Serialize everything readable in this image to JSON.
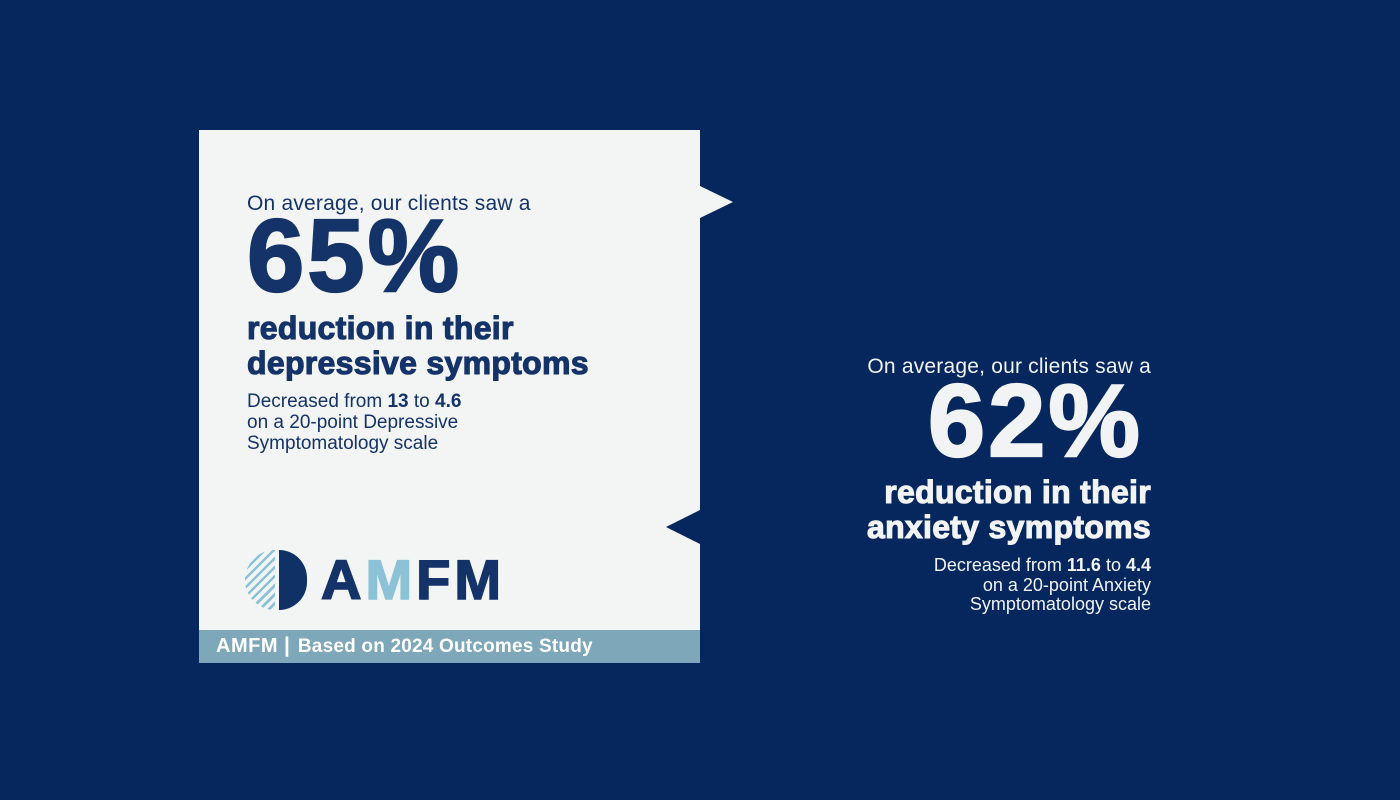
{
  "colors": {
    "background_navy": "#05275e",
    "card_background": "#f3f4f4",
    "navy_text": "#143369",
    "light_blue_accent": "#8cc2d6",
    "footer_bar": "#7ea8ba",
    "white_text": "#f1f3f5"
  },
  "left_card": {
    "eyebrow": "On average, our clients saw a",
    "stat": "65%",
    "heading_line1": "reduction in their",
    "heading_line2": "depressive symptoms",
    "detail": {
      "prefix": "Decreased from ",
      "from_value": "13",
      "connector": " to ",
      "to_value": "4.6",
      "line2": "on a 20-point Depressive",
      "line3": "Symptomatology scale"
    },
    "logo_letters": [
      "A",
      "M",
      "F",
      "M"
    ],
    "footer": {
      "brand": "AMFM",
      "separator": "|",
      "text": "Based on 2024 Outcomes Study"
    }
  },
  "right_block": {
    "eyebrow": "On average, our clients saw a",
    "stat": "62%",
    "heading_line1": "reduction in their",
    "heading_line2": "anxiety symptoms",
    "detail": {
      "prefix": "Decreased from ",
      "from_value": "11.6",
      "connector": " to ",
      "to_value": "4.4",
      "line2": "on a 20-point Anxiety",
      "line3": "Symptomatology scale"
    }
  }
}
